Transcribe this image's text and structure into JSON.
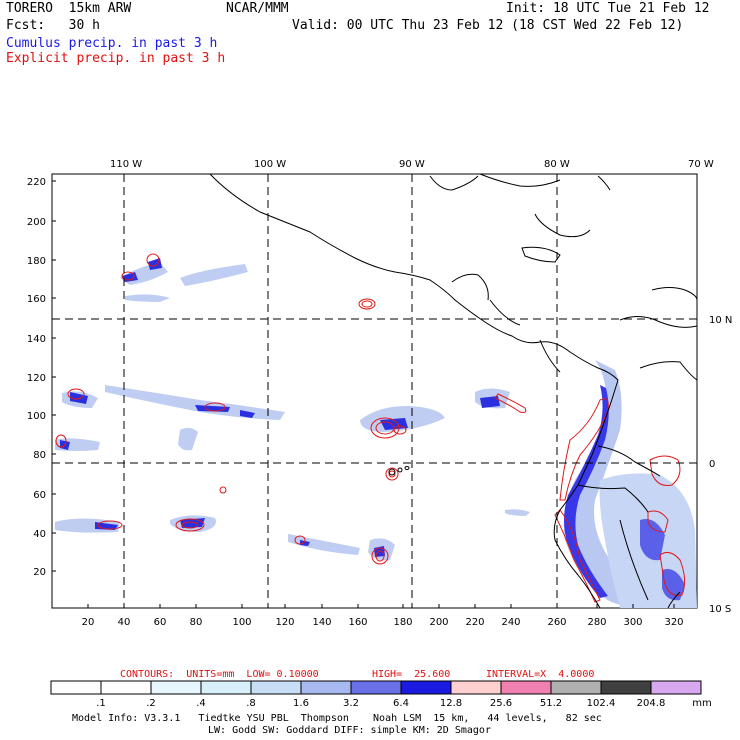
{
  "header": {
    "model": "TORERO  15km ARW",
    "org": "NCAR/MMM",
    "init": "Init: 18 UTC Tue 21 Feb 12",
    "fcst": "Fcst:   30 h",
    "valid": "Valid: 00 UTC Thu 23 Feb 12 (18 CST Wed 22 Feb 12)",
    "cumulus": "Cumulus precip. in past 3 h",
    "explicit": "Explicit precip. in past 3 h"
  },
  "map": {
    "lon_labels": [
      "110 W",
      "100 W",
      "90 W",
      "80 W",
      "70 W"
    ],
    "lat_labels": [
      "10 N",
      "0",
      "10 S"
    ],
    "y_ticks": [
      "220",
      "200",
      "180",
      "160",
      "140",
      "120",
      "100",
      "80",
      "60",
      "40",
      "20"
    ],
    "x_ticks": [
      "20",
      "40",
      "60",
      "80",
      "100",
      "120",
      "140",
      "160",
      "180",
      "200",
      "220",
      "240",
      "260",
      "280",
      "300",
      "320"
    ]
  },
  "contour_info": {
    "contours": "CONTOURS:  UNITS=mm  LOW= 0.10000",
    "high": "HIGH=  25.600",
    "interval": "INTERVAL=X  4.0000"
  },
  "colorbar": {
    "labels": [
      ".1",
      ".2",
      ".4",
      ".8",
      "1.6",
      "3.2",
      "6.4",
      "12.8",
      "25.6",
      "51.2",
      "102.4",
      "204.8"
    ],
    "unit": "mm",
    "colors": [
      "#ffffff",
      "#ffffff",
      "#e8f6ff",
      "#d8f0fa",
      "#c8def5",
      "#a8b8f0",
      "#6a70e8",
      "#1a1ae0",
      "#ffd0d0",
      "#f080b0",
      "#b0b0b0",
      "#404040",
      "#d8a8f0"
    ]
  },
  "footer": {
    "line1": "Model Info: V3.3.1   Tiedtke YSU PBL  Thompson    Noah LSM  15 km,   44 levels,   82 sec",
    "line2": "LW: Godd SW: Goddard DIFF: simple KM: 2D Smagor"
  }
}
